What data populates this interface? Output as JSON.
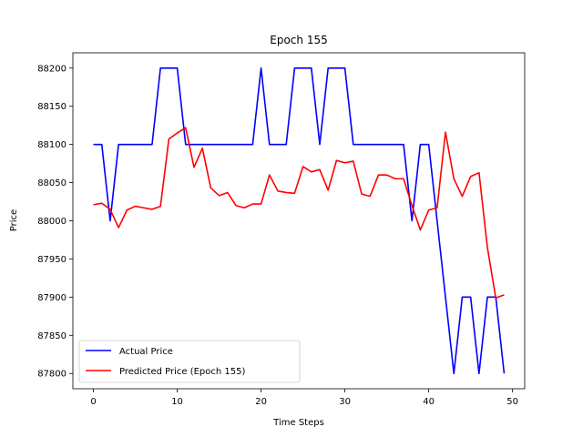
{
  "chart_data": {
    "type": "line",
    "title": "Epoch 155",
    "xlabel": "Time Steps",
    "ylabel": "Price",
    "xlim": [
      -2.45,
      51.45
    ],
    "ylim": [
      87780,
      88220
    ],
    "xticks": [
      0,
      10,
      20,
      30,
      40,
      50
    ],
    "yticks": [
      87800,
      87850,
      87900,
      87950,
      88000,
      88050,
      88100,
      88150,
      88200
    ],
    "grid": false,
    "legend": "lower-left",
    "series": [
      {
        "name": "Actual Price",
        "color": "#0000ff",
        "x": [
          0,
          1,
          2,
          3,
          4,
          5,
          6,
          7,
          8,
          9,
          10,
          11,
          12,
          13,
          14,
          15,
          16,
          17,
          18,
          19,
          20,
          21,
          22,
          23,
          24,
          25,
          26,
          27,
          28,
          29,
          30,
          31,
          32,
          33,
          34,
          35,
          36,
          37,
          38,
          39,
          40,
          41,
          42,
          43,
          44,
          45,
          46,
          47,
          48,
          49
        ],
        "values": [
          88100,
          88100,
          88000,
          88100,
          88100,
          88100,
          88100,
          88100,
          88200,
          88200,
          88200,
          88100,
          88100,
          88100,
          88100,
          88100,
          88100,
          88100,
          88100,
          88100,
          88200,
          88100,
          88100,
          88100,
          88200,
          88200,
          88200,
          88100,
          88200,
          88200,
          88200,
          88100,
          88100,
          88100,
          88100,
          88100,
          88100,
          88100,
          88000,
          88100,
          88100,
          88000,
          87900,
          87800,
          87900,
          87900,
          87800,
          87900,
          87900,
          87800
        ]
      },
      {
        "name": "Predicted Price (Epoch 155)",
        "color": "#ff0000",
        "x": [
          0,
          1,
          2,
          3,
          4,
          5,
          6,
          7,
          8,
          9,
          10,
          11,
          12,
          13,
          14,
          15,
          16,
          17,
          18,
          19,
          20,
          21,
          22,
          23,
          24,
          25,
          26,
          27,
          28,
          29,
          30,
          31,
          32,
          33,
          34,
          35,
          36,
          37,
          38,
          39,
          40,
          41,
          42,
          43,
          44,
          45,
          46,
          47,
          48,
          49
        ],
        "values": [
          88021,
          88023,
          88015,
          87991,
          88014,
          88019,
          88017,
          88015,
          88019,
          88107,
          88115,
          88122,
          88070,
          88095,
          88043,
          88033,
          88037,
          88020,
          88017,
          88022,
          88022,
          88060,
          88039,
          88037,
          88036,
          88071,
          88064,
          88067,
          88040,
          88079,
          88076,
          88078,
          88035,
          88032,
          88060,
          88060,
          88055,
          88055,
          88020,
          87988,
          88014,
          88017,
          88116,
          88055,
          88032,
          88058,
          88063,
          87965,
          87899,
          87903
        ]
      }
    ]
  }
}
